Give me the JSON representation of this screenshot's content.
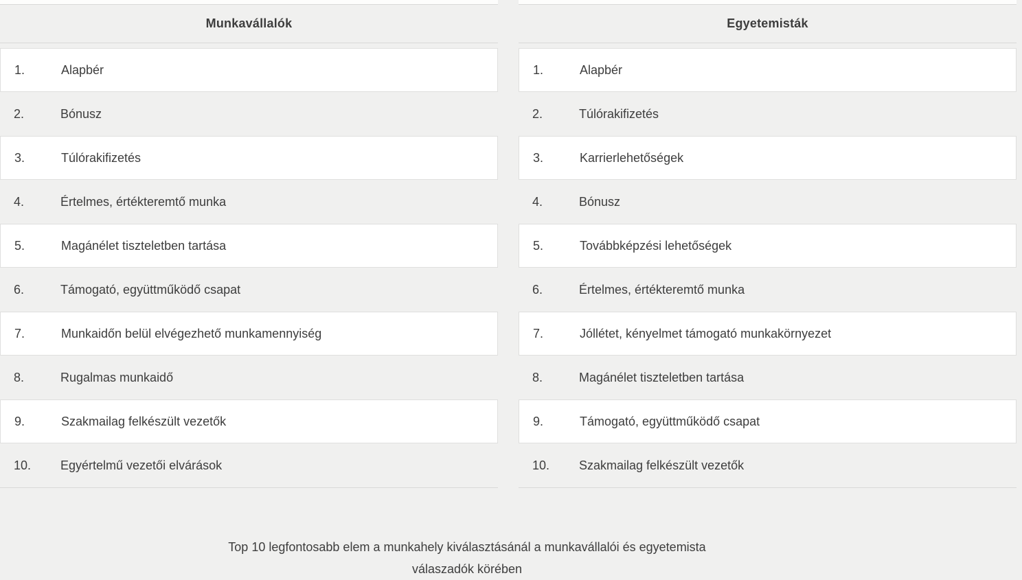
{
  "colors": {
    "page_background": "#f0f0ef",
    "row_white": "#ffffff",
    "border": "#d9d9d8",
    "text": "#3d3d3d"
  },
  "caption": {
    "line1": "Top 10 legfontosabb elem a munkahely kiválasztásánál a munkavállalói és egyetemista",
    "line2": "válaszadók körében"
  },
  "tables": [
    {
      "title": "Munkavállalók",
      "rows": [
        {
          "rank": "1.",
          "label": "Alapbér"
        },
        {
          "rank": "2.",
          "label": "Bónusz"
        },
        {
          "rank": "3.",
          "label": "Túlórakifizetés"
        },
        {
          "rank": "4.",
          "label": "Értelmes, értékteremtő munka"
        },
        {
          "rank": "5.",
          "label": "Magánélet tiszteletben tartása"
        },
        {
          "rank": "6.",
          "label": "Támogató, együttműködő csapat"
        },
        {
          "rank": "7.",
          "label": "Munkaidőn belül elvégezhető munkamennyiség"
        },
        {
          "rank": "8.",
          "label": "Rugalmas munkaidő"
        },
        {
          "rank": "9.",
          "label": "Szakmailag felkészült vezetők"
        },
        {
          "rank": "10.",
          "label": "Egyértelmű vezetői elvárások"
        }
      ]
    },
    {
      "title": "Egyetemisták",
      "rows": [
        {
          "rank": "1.",
          "label": "Alapbér"
        },
        {
          "rank": "2.",
          "label": "Túlórakifizetés"
        },
        {
          "rank": "3.",
          "label": "Karrierlehetőségek"
        },
        {
          "rank": "4.",
          "label": "Bónusz"
        },
        {
          "rank": "5.",
          "label": "Továbbképzési lehetőségek"
        },
        {
          "rank": "6.",
          "label": "Értelmes, értékteremtő munka"
        },
        {
          "rank": "7.",
          "label": "Jóllétet, kényelmet támogató munkakörnyezet"
        },
        {
          "rank": "8.",
          "label": "Magánélet tiszteletben tartása"
        },
        {
          "rank": "9.",
          "label": "Támogató, együttműködő csapat"
        },
        {
          "rank": "10.",
          "label": "Szakmailag felkészült vezetők"
        }
      ]
    }
  ]
}
